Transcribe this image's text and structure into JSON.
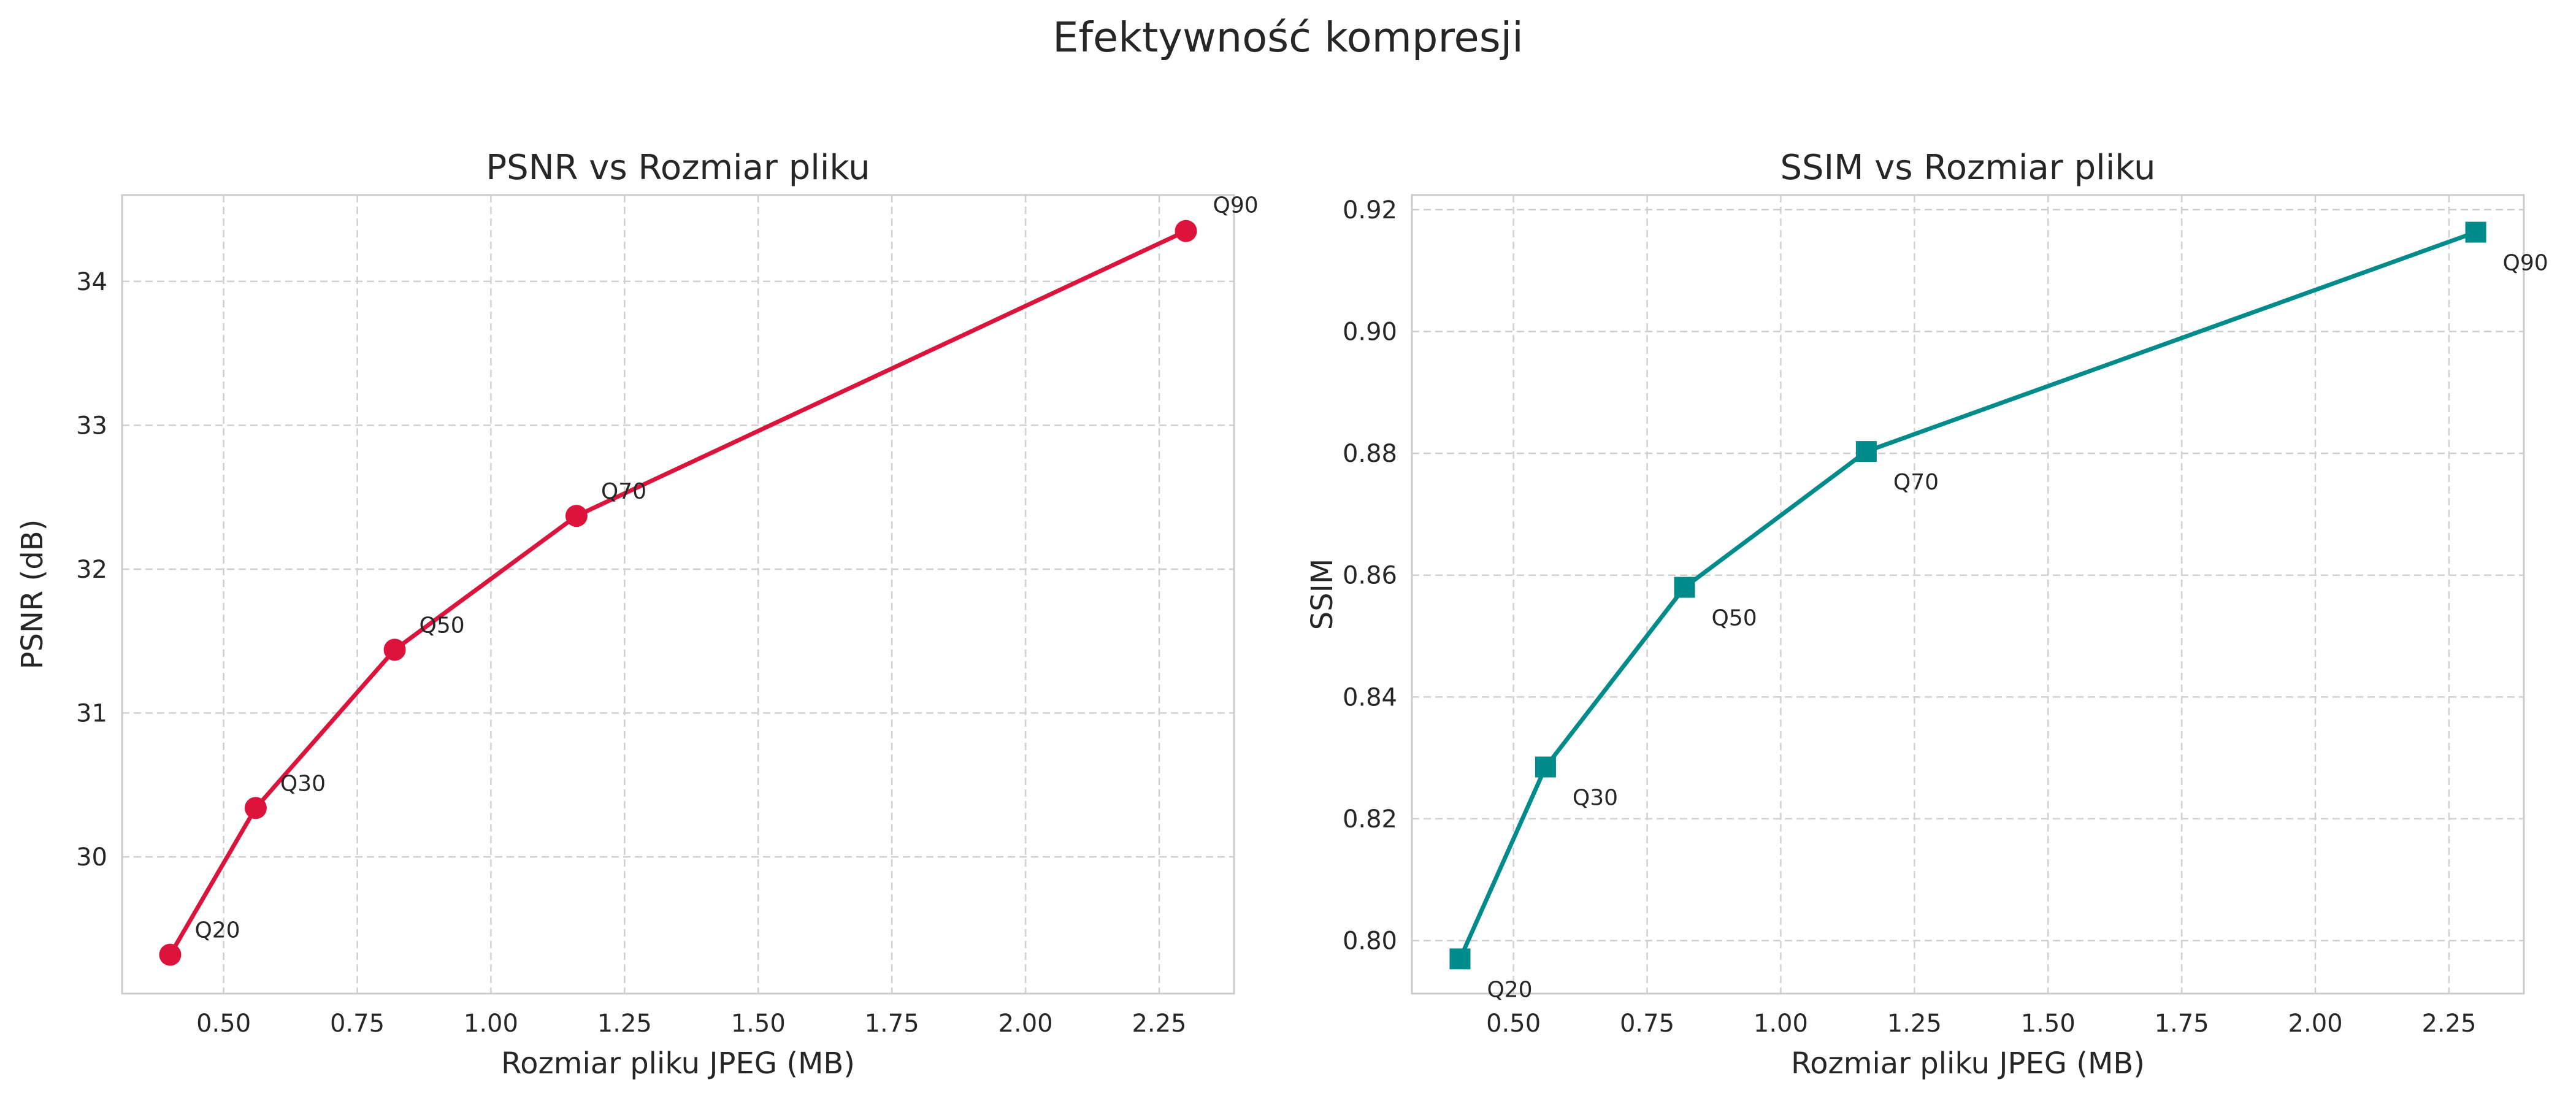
{
  "figure": {
    "suptitle": "Efektywność kompresji"
  },
  "chart_data": [
    {
      "type": "line",
      "title": "PSNR vs Rozmiar pliku",
      "xlabel": "Rozmiar pliku JPEG (MB)",
      "ylabel": "PSNR (dB)",
      "xlim": [
        0.31,
        2.39
      ],
      "ylim": [
        29.05,
        34.6
      ],
      "xticks": [
        "0.50",
        "0.75",
        "1.00",
        "1.25",
        "1.50",
        "1.75",
        "2.00",
        "2.25"
      ],
      "yticks": [
        "30",
        "31",
        "32",
        "33",
        "34"
      ],
      "grid": true,
      "marker": "circle",
      "color": "#dc143c",
      "points": [
        {
          "label": "Q20",
          "x": 0.4,
          "y": 29.32
        },
        {
          "label": "Q30",
          "x": 0.56,
          "y": 30.34
        },
        {
          "label": "Q50",
          "x": 0.82,
          "y": 31.44
        },
        {
          "label": "Q70",
          "x": 1.16,
          "y": 32.37
        },
        {
          "label": "Q90",
          "x": 2.3,
          "y": 34.35
        }
      ]
    },
    {
      "type": "line",
      "title": "SSIM vs Rozmiar pliku",
      "xlabel": "Rozmiar pliku JPEG (MB)",
      "ylabel": "SSIM",
      "xlim": [
        0.31,
        2.39
      ],
      "ylim": [
        0.7913,
        0.9224
      ],
      "xticks": [
        "0.50",
        "0.75",
        "1.00",
        "1.25",
        "1.50",
        "1.75",
        "2.00",
        "2.25"
      ],
      "yticks": [
        "0.80",
        "0.82",
        "0.84",
        "0.86",
        "0.88",
        "0.90",
        "0.92"
      ],
      "grid": true,
      "marker": "square",
      "color": "#008b8b",
      "points": [
        {
          "label": "Q20",
          "x": 0.4,
          "y": 0.797
        },
        {
          "label": "Q30",
          "x": 0.56,
          "y": 0.8285
        },
        {
          "label": "Q50",
          "x": 0.82,
          "y": 0.858
        },
        {
          "label": "Q70",
          "x": 1.16,
          "y": 0.8803
        },
        {
          "label": "Q90",
          "x": 2.3,
          "y": 0.9163
        }
      ]
    }
  ]
}
